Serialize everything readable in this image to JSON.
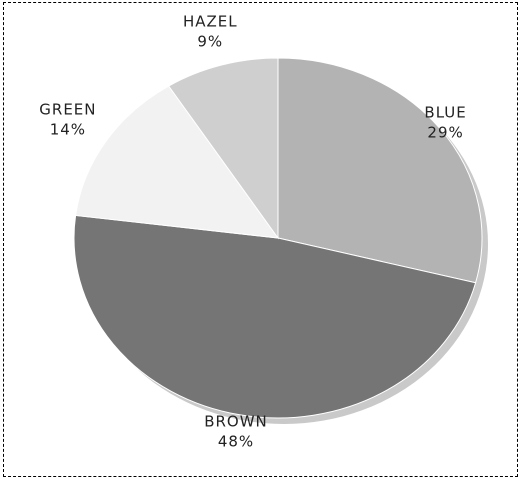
{
  "chart_data": {
    "type": "pie",
    "categories": [
      "BLUE",
      "BROWN",
      "GREEN",
      "HAZEL"
    ],
    "values": [
      29,
      48,
      14,
      9
    ],
    "value_labels": [
      "29%",
      "48%",
      "14%",
      "9%"
    ],
    "start": "12 o'clock",
    "direction": "clockwise",
    "legend": "none",
    "colors": [
      "#b3b3b3",
      "#757575",
      "#f2f2f2",
      "#cfcfcf"
    ],
    "shadow_color": "#c9c9c9"
  }
}
